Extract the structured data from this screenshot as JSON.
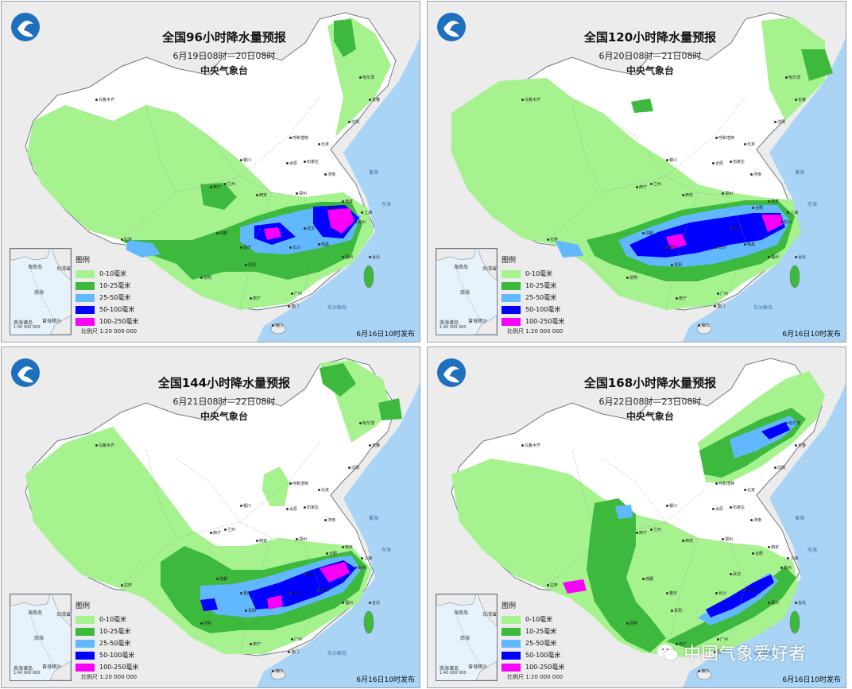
{
  "colors": {
    "sea": "#a9d4f5",
    "land": "#ffffff",
    "neighbor_land": "#ececec",
    "rain_0_10": "#a6f28f",
    "rain_10_25": "#3dba3d",
    "rain_25_50": "#61b8ff",
    "rain_50_100": "#0000fe",
    "rain_100_250": "#fa00fa"
  },
  "legend": {
    "title": "图例",
    "items": [
      {
        "label": "0-10毫米",
        "color": "#a6f28f"
      },
      {
        "label": "10-25毫米",
        "color": "#3dba3d"
      },
      {
        "label": "25-50毫米",
        "color": "#61b8ff"
      },
      {
        "label": "50-100毫米",
        "color": "#0000fe"
      },
      {
        "label": "100-250毫米",
        "color": "#fa00fa"
      }
    ]
  },
  "inset": {
    "south_sea_label": "南海诸岛",
    "scale": "1:40 000 000",
    "labels": [
      "海南岛",
      "台湾省",
      "南海",
      "曾母暗沙"
    ]
  },
  "scale_label": "比例尺   1:20 000 000",
  "cities": [
    "乌鲁木齐",
    "哈尔滨",
    "长春",
    "沈阳",
    "呼和浩特",
    "北京",
    "太原",
    "石家庄",
    "济南",
    "银川",
    "兰州",
    "西宁",
    "西安",
    "郑州",
    "合肥",
    "南京",
    "上海",
    "杭州",
    "武汉",
    "长沙",
    "南昌",
    "福州",
    "台北",
    "成都",
    "重庆",
    "贵阳",
    "昆明",
    "南宁",
    "广州",
    "澳门",
    "海口",
    "拉萨"
  ],
  "seas": [
    "东海",
    "黄海",
    "东沙群岛"
  ],
  "panels": [
    {
      "title": "全国96小时降水量预报",
      "period": "6月19日08时—20日08时",
      "issuer": "中央气象台",
      "issued": "6月16日10时发布"
    },
    {
      "title": "全国120小时降水量预报",
      "period": "6月20日08时—21日08时",
      "issuer": "中央气象台",
      "issued": "6月16日10时发布"
    },
    {
      "title": "全国144小时降水量预报",
      "period": "6月21日08时—22日08时",
      "issuer": "中央气象台",
      "issued": "6月16日10时发布"
    },
    {
      "title": "全国168小时降水量预报",
      "period": "6月22日08时—23日08时",
      "issuer": "中央气象台",
      "issued": "6月16日10时发布"
    }
  ],
  "watermark": "中国气象爱好者"
}
